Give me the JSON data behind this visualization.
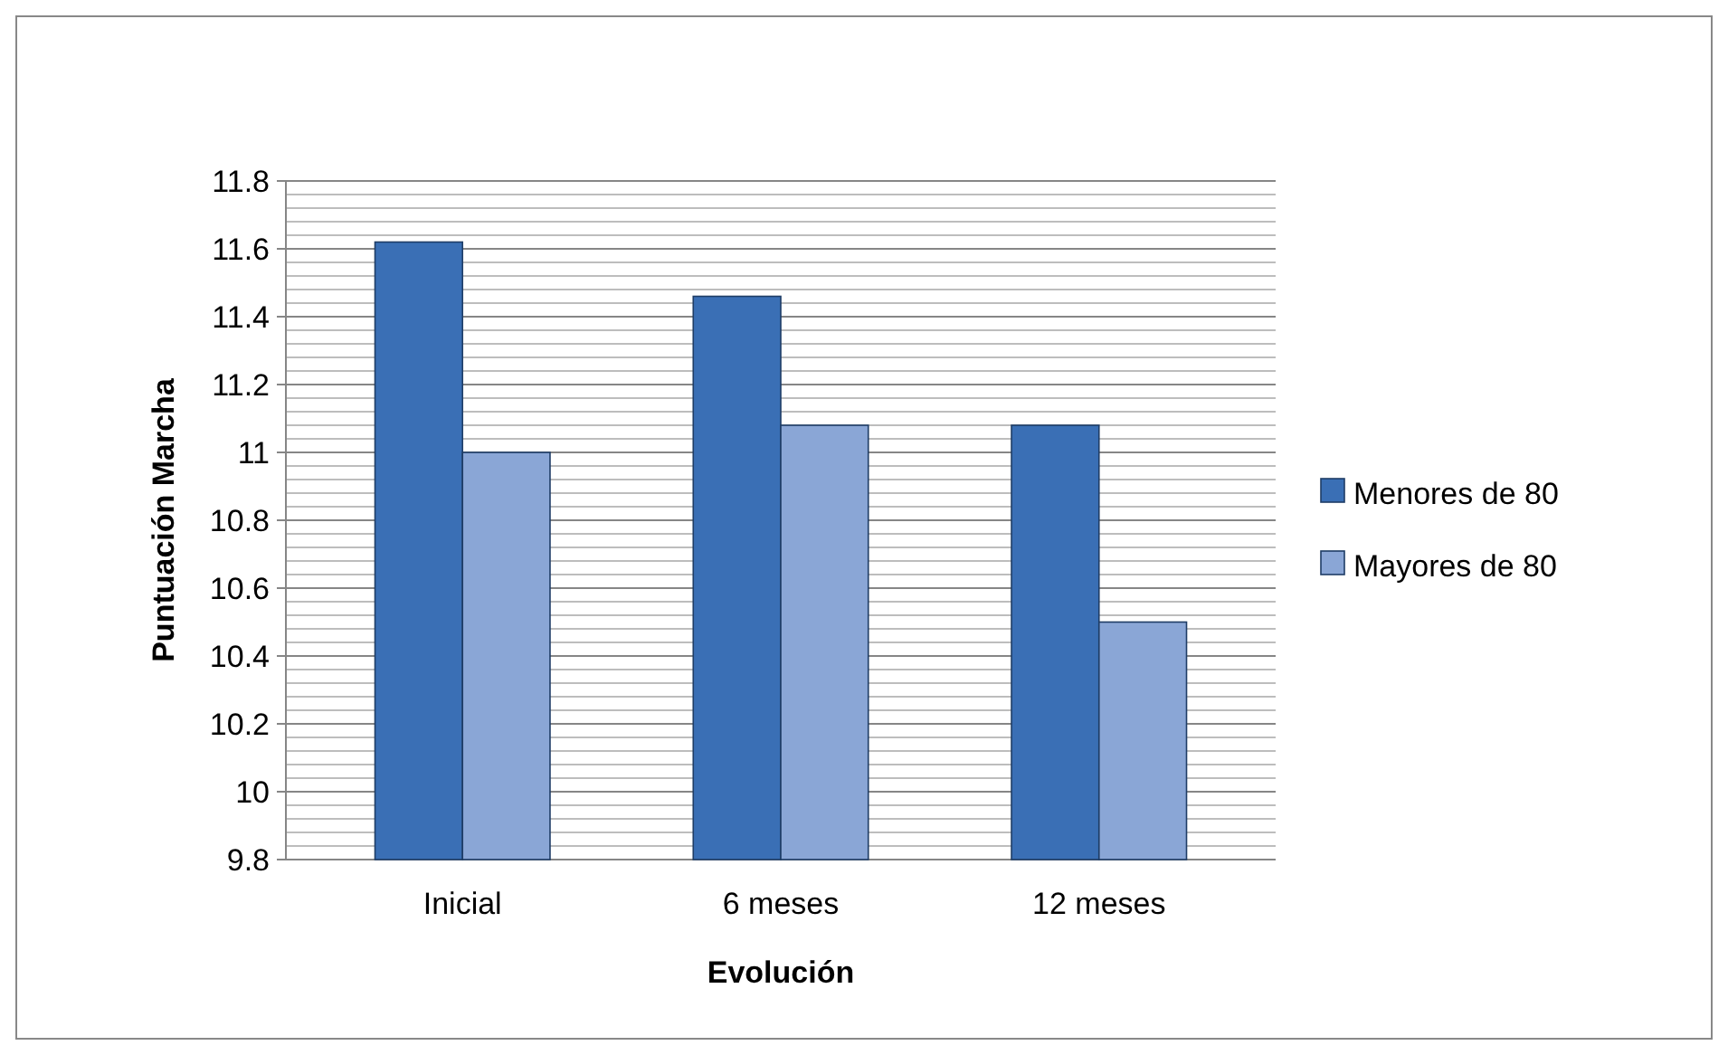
{
  "chart_data": {
    "type": "bar",
    "xlabel": "Evolución",
    "ylabel": "Puntuación Marcha",
    "categories": [
      "Inicial",
      "6 meses",
      "12 meses"
    ],
    "series": [
      {
        "name": "Menores de 80",
        "color": "#3a6fb5",
        "values": [
          11.62,
          11.46,
          11.08
        ]
      },
      {
        "name": "Mayores de 80",
        "color": "#8aa6d6",
        "values": [
          11.0,
          11.08,
          10.5
        ]
      }
    ],
    "ylim": [
      9.8,
      11.8
    ],
    "yticks": [
      9.8,
      10,
      10.2,
      10.4,
      10.6,
      10.8,
      11,
      11.2,
      11.4,
      11.6,
      11.8
    ],
    "grid": "y",
    "legend": "right"
  }
}
